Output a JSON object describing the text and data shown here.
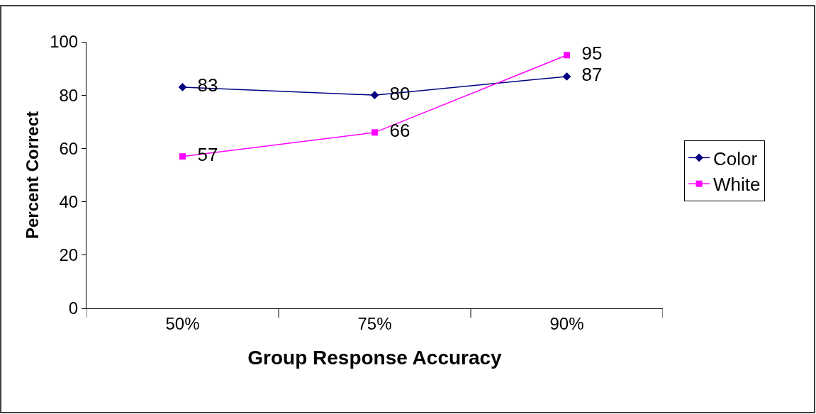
{
  "chart_data": {
    "type": "line",
    "xlabel": "Group Response Accuracy",
    "ylabel": "Percent Correct",
    "categories": [
      "50%",
      "75%",
      "90%"
    ],
    "series": [
      {
        "name": "Color",
        "color": "#000080",
        "values": [
          83,
          80,
          87
        ],
        "marker": "diamond"
      },
      {
        "name": "White",
        "color": "#ff00ff",
        "values": [
          57,
          66,
          95
        ],
        "marker": "square"
      }
    ],
    "ylim": [
      0,
      100
    ],
    "yticks": [
      0,
      20,
      40,
      60,
      80,
      100
    ],
    "legend": "right",
    "data_labels": true,
    "line_style": "solid"
  }
}
